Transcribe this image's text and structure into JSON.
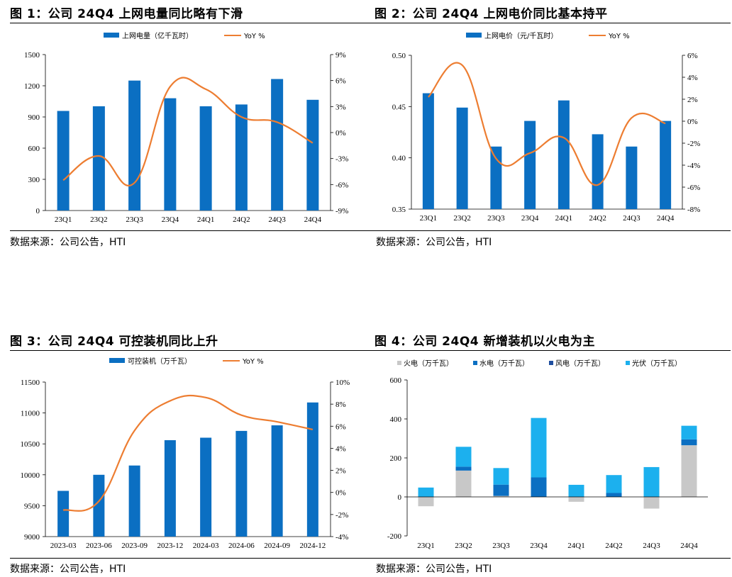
{
  "charts": [
    {
      "title": "图 1：公司 24Q4 上网电量同比略有下滑",
      "source": "数据来源：公司公告，HTI",
      "legend": [
        "上网电量（亿千瓦时）",
        "YoY %"
      ]
    },
    {
      "title": "图 2：公司 24Q4 上网电价同比基本持平",
      "source": "数据来源：公司公告，HTI",
      "legend": [
        "上网电价（元/千瓦时）",
        "YoY %"
      ]
    },
    {
      "title": "图 3：公司 24Q4 可控装机同比上升",
      "source": "数据来源：公司公告，HTI",
      "legend": [
        "可控装机（万千瓦）",
        "YoY %"
      ]
    },
    {
      "title": "图 4：公司 24Q4 新增装机以火电为主",
      "source": "数据来源：公司公告，HTI",
      "legend": [
        "火电（万千瓦）",
        "水电（万千瓦）",
        "风电（万千瓦）",
        "光伏（万千瓦）"
      ]
    }
  ],
  "colors": {
    "bar": "#0B6FC2",
    "line": "#ED7D31",
    "thermal": "#C8C8C8",
    "hydro": "#0B6FC2",
    "wind": "#1F4E9F",
    "solar": "#1CB0EE"
  },
  "chart_data": [
    {
      "type": "bar",
      "categories": [
        "23Q1",
        "23Q2",
        "23Q3",
        "23Q4",
        "24Q1",
        "24Q2",
        "24Q3",
        "24Q4"
      ],
      "series": [
        {
          "name": "上网电量（亿千瓦时）",
          "type": "bar",
          "axis": "left",
          "values": [
            958,
            1003,
            1250,
            1080,
            1003,
            1020,
            1265,
            1065
          ]
        },
        {
          "name": "YoY %",
          "type": "line",
          "axis": "right",
          "values": [
            -5.5,
            -2.7,
            -5.8,
            5.3,
            5.0,
            1.8,
            1.2,
            -1.2
          ]
        }
      ],
      "ylim": [
        0,
        1500
      ],
      "yticks": [
        0,
        300,
        600,
        900,
        1200,
        1500
      ],
      "y2lim": [
        -9,
        9
      ],
      "y2ticks": [
        "-9%",
        "-6%",
        "-3%",
        "0%",
        "3%",
        "6%",
        "9%"
      ]
    },
    {
      "type": "bar",
      "categories": [
        "23Q1",
        "23Q2",
        "23Q3",
        "23Q4",
        "24Q1",
        "24Q2",
        "24Q3",
        "24Q4"
      ],
      "series": [
        {
          "name": "上网电价（元/千瓦时）",
          "type": "bar",
          "axis": "left",
          "values": [
            0.463,
            0.449,
            0.411,
            0.436,
            0.456,
            0.423,
            0.411,
            0.436
          ]
        },
        {
          "name": "YoY %",
          "type": "line",
          "axis": "right",
          "values": [
            2.2,
            5.1,
            -3.4,
            -2.9,
            -1.5,
            -5.8,
            0.3,
            -0.2
          ]
        }
      ],
      "ylim": [
        0.35,
        0.5
      ],
      "yticks": [
        "0.35",
        "0.40",
        "0.45",
        "0.50"
      ],
      "y2lim": [
        -8,
        6
      ],
      "y2ticks": [
        "-8%",
        "-6%",
        "-4%",
        "-2%",
        "0%",
        "2%",
        "4%",
        "6%"
      ]
    },
    {
      "type": "bar",
      "categories": [
        "2023-03",
        "2023-06",
        "2023-09",
        "2023-12",
        "2024-03",
        "2024-06",
        "2024-09",
        "2024-12"
      ],
      "series": [
        {
          "name": "可控装机（万千瓦）",
          "type": "bar",
          "axis": "left",
          "values": [
            9740,
            10000,
            10150,
            10560,
            10600,
            10710,
            10800,
            11170
          ]
        },
        {
          "name": "YoY %",
          "type": "line",
          "axis": "right",
          "values": [
            -1.6,
            -0.8,
            5.6,
            8.3,
            8.6,
            7.0,
            6.4,
            5.7
          ]
        }
      ],
      "ylim": [
        9000,
        11500
      ],
      "yticks": [
        9000,
        9500,
        10000,
        10500,
        11000,
        11500
      ],
      "y2lim": [
        -4,
        10
      ],
      "y2ticks": [
        "-4%",
        "-2%",
        "0%",
        "2%",
        "4%",
        "6%",
        "8%",
        "10%"
      ]
    },
    {
      "type": "bar",
      "stacked": true,
      "categories": [
        "23Q1",
        "23Q2",
        "23Q3",
        "23Q4",
        "24Q1",
        "24Q2",
        "24Q3",
        "24Q4"
      ],
      "series": [
        {
          "name": "火电（万千瓦）",
          "values": [
            -48,
            135,
            5,
            0,
            -25,
            0,
            -60,
            265
          ]
        },
        {
          "name": "水电（万千瓦）",
          "values": [
            0,
            20,
            58,
            100,
            0,
            20,
            0,
            30
          ]
        },
        {
          "name": "风电（万千瓦）",
          "values": [
            0,
            0,
            0,
            0,
            0,
            0,
            0,
            0
          ]
        },
        {
          "name": "光伏（万千瓦）",
          "values": [
            48,
            102,
            85,
            305,
            62,
            92,
            153,
            70
          ]
        }
      ],
      "ylim": [
        -200,
        600
      ],
      "yticks": [
        -200,
        0,
        200,
        400,
        600
      ]
    }
  ]
}
